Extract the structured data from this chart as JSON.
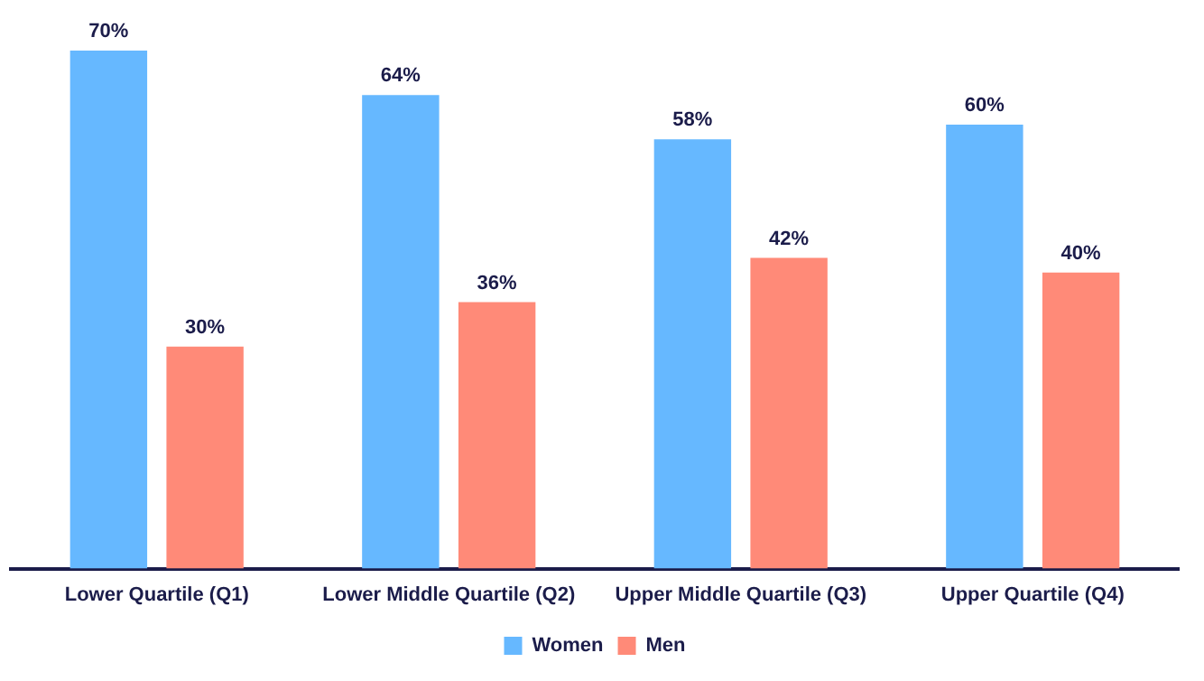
{
  "chart_data": {
    "type": "bar",
    "categories": [
      "Lower Quartile (Q1)",
      "Lower Middle Quartile (Q2)",
      "Upper Middle Quartile (Q3)",
      "Upper Quartile (Q4)"
    ],
    "series": [
      {
        "name": "Women",
        "color": "#66b8ff",
        "values": [
          70,
          64,
          58,
          60
        ],
        "value_labels": [
          "70%",
          "64%",
          "58%",
          "60%"
        ]
      },
      {
        "name": "Men",
        "color": "#ff8a78",
        "values": [
          30,
          36,
          42,
          40
        ],
        "value_labels": [
          "30%",
          "36%",
          "42%",
          "40%"
        ]
      }
    ],
    "grid": false,
    "legend": "bottom"
  }
}
